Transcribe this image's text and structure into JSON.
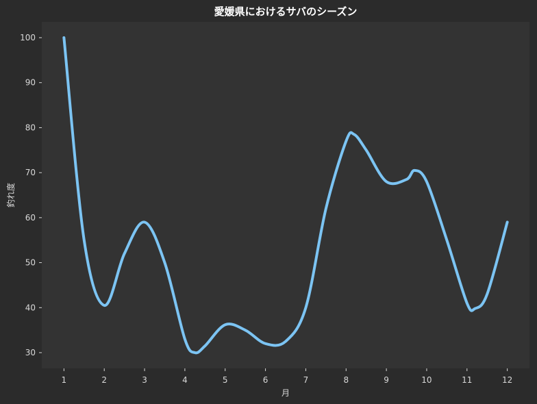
{
  "chart_data": {
    "type": "line",
    "title": "愛媛県におけるサバのシーズン",
    "xlabel": "月",
    "ylabel": "釣れ度",
    "x": [
      1,
      2,
      3,
      4,
      5,
      6,
      7,
      8,
      9,
      10,
      11,
      12
    ],
    "x_tick_labels": [
      "1",
      "2",
      "3",
      "4",
      "5",
      "6",
      "7",
      "8",
      "9",
      "10",
      "11",
      "12"
    ],
    "y_ticks": [
      30,
      40,
      50,
      60,
      70,
      80,
      90,
      100
    ],
    "y_tick_labels": [
      "30",
      "40",
      "50",
      "60",
      "70",
      "80",
      "90",
      "100"
    ],
    "xlim": [
      0.45,
      12.55
    ],
    "ylim": [
      26.5,
      103.5
    ],
    "grid": false,
    "legend": "none",
    "series": [
      {
        "points": [
          [
            1,
            100
          ],
          [
            1.5,
            55
          ],
          [
            2,
            40.5
          ],
          [
            2.5,
            52
          ],
          [
            3,
            59
          ],
          [
            3.5,
            50
          ],
          [
            4,
            33
          ],
          [
            4.25,
            30
          ],
          [
            4.5,
            31.5
          ],
          [
            5,
            36.2
          ],
          [
            5.5,
            35
          ],
          [
            6,
            32
          ],
          [
            6.5,
            32.5
          ],
          [
            7,
            40
          ],
          [
            7.5,
            62
          ],
          [
            8,
            77
          ],
          [
            8.2,
            78.5
          ],
          [
            8.5,
            75
          ],
          [
            9,
            68
          ],
          [
            9.5,
            68.5
          ],
          [
            9.7,
            70.5
          ],
          [
            10,
            68
          ],
          [
            10.5,
            55
          ],
          [
            11,
            41
          ],
          [
            11.2,
            39.8
          ],
          [
            11.5,
            43
          ],
          [
            12,
            59
          ]
        ],
        "color": "#7cc4f3"
      }
    ],
    "colors": {
      "page_background": "#2b2b2b",
      "plot_background": "#333333",
      "text": "#d9d9d9",
      "title": "#ffffff"
    }
  }
}
